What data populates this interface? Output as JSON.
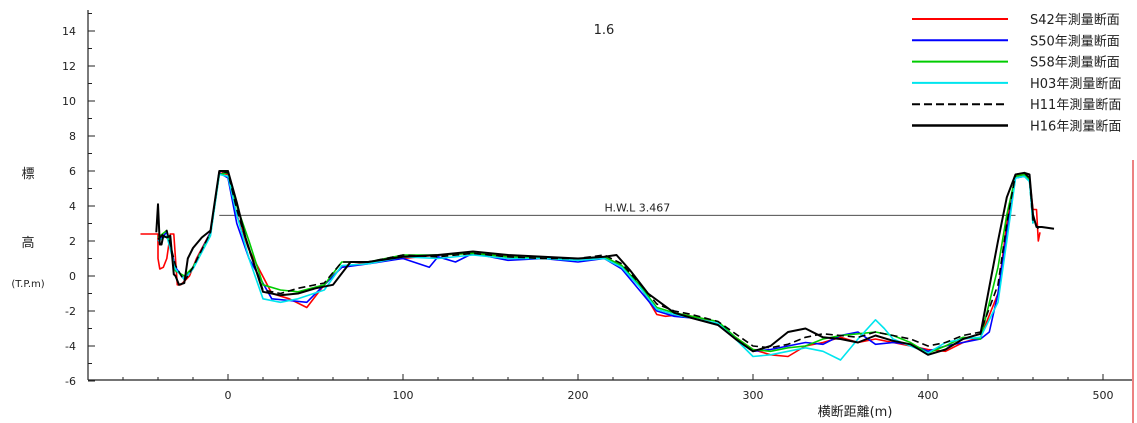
{
  "chart_data": {
    "type": "line",
    "title": "1.6",
    "xlabel": "横断距離(m)",
    "ylabel_top": "標",
    "ylabel_bottom": "高",
    "ylabel_unit": "(T.P.m)",
    "xlim": [
      -85,
      520
    ],
    "ylim": [
      -6,
      15
    ],
    "x_ticks": [
      0,
      100,
      200,
      300,
      400,
      500
    ],
    "y_ticks": [
      -6,
      -4,
      -2,
      0,
      2,
      4,
      6,
      8,
      10,
      12,
      14
    ],
    "legend_position": "top-right",
    "reference_line": {
      "label": "H.W.L 3.467",
      "y": 3.467,
      "x_start": -5,
      "x_end": 450
    },
    "series": [
      {
        "name": "S42年測量断面",
        "color": "#ff0000",
        "dash": "solid",
        "width": 1.6,
        "x": [
          -50,
          -40,
          -40,
          -39,
          -37,
          -35,
          -33,
          -31,
          -29,
          -27,
          -25,
          -22,
          -18,
          -10,
          -5,
          0,
          5,
          12,
          25,
          35,
          45,
          55,
          65,
          80,
          100,
          120,
          140,
          160,
          180,
          200,
          215,
          225,
          235,
          245,
          250,
          260,
          270,
          280,
          290,
          300,
          310,
          320,
          330,
          340,
          350,
          360,
          370,
          380,
          390,
          400,
          410,
          420,
          430,
          440,
          445,
          450,
          455,
          458,
          460,
          462,
          463,
          464
        ],
        "y": [
          2.4,
          2.4,
          1.0,
          0.4,
          0.5,
          1.0,
          2.4,
          2.4,
          -0.5,
          -0.5,
          -0.3,
          0.0,
          1.0,
          2.5,
          5.9,
          5.8,
          3.5,
          1.5,
          -1.0,
          -1.3,
          -1.8,
          -0.5,
          0.5,
          0.8,
          1.0,
          1.2,
          1.3,
          1.1,
          1.0,
          1.0,
          1.0,
          0.5,
          -0.5,
          -2.2,
          -2.3,
          -2.2,
          -2.4,
          -2.8,
          -3.5,
          -4.2,
          -4.5,
          -4.6,
          -4.0,
          -3.8,
          -3.5,
          -3.8,
          -3.6,
          -3.8,
          -4.0,
          -4.2,
          -4.3,
          -3.8,
          -3.5,
          -1.0,
          3.0,
          5.7,
          5.8,
          5.6,
          3.8,
          3.8,
          2.0,
          2.5
        ]
      },
      {
        "name": "S50年測量断面",
        "color": "#0000ff",
        "dash": "solid",
        "width": 1.6,
        "x": [
          -40,
          -35,
          -30,
          -25,
          -20,
          -10,
          -5,
          0,
          5,
          12,
          25,
          35,
          45,
          55,
          65,
          80,
          100,
          115,
          120,
          130,
          140,
          160,
          180,
          200,
          215,
          225,
          235,
          245,
          255,
          265,
          280,
          290,
          300,
          310,
          320,
          330,
          340,
          350,
          360,
          370,
          380,
          390,
          400,
          410,
          420,
          430,
          435,
          440,
          445,
          450,
          455,
          458,
          460
        ],
        "y": [
          2.0,
          2.5,
          0.5,
          -0.2,
          0.5,
          2.5,
          5.9,
          5.6,
          3.0,
          1.0,
          -1.3,
          -1.4,
          -1.5,
          -0.5,
          0.5,
          0.7,
          1.0,
          0.5,
          1.1,
          0.8,
          1.3,
          0.9,
          1.0,
          0.8,
          1.0,
          0.4,
          -0.8,
          -2.0,
          -2.3,
          -2.4,
          -2.8,
          -3.6,
          -4.3,
          -4.2,
          -4.0,
          -3.8,
          -3.9,
          -3.4,
          -3.2,
          -3.9,
          -3.8,
          -3.9,
          -4.3,
          -4.0,
          -3.8,
          -3.6,
          -3.2,
          -1.0,
          2.5,
          5.6,
          5.7,
          5.5,
          3.0
        ]
      },
      {
        "name": "S58年測量断面",
        "color": "#00cc00",
        "dash": "solid",
        "width": 1.6,
        "x": [
          -40,
          -35,
          -30,
          -25,
          -20,
          -10,
          -5,
          0,
          5,
          12,
          20,
          30,
          40,
          55,
          65,
          80,
          100,
          120,
          140,
          160,
          180,
          200,
          215,
          225,
          235,
          245,
          255,
          265,
          280,
          290,
          300,
          310,
          320,
          330,
          340,
          350,
          360,
          370,
          380,
          390,
          400,
          410,
          420,
          430,
          440,
          445,
          450,
          455,
          458,
          460
        ],
        "y": [
          2.2,
          2.6,
          0.3,
          0.0,
          0.5,
          2.4,
          5.8,
          5.9,
          4.0,
          2.0,
          -0.5,
          -0.8,
          -0.9,
          -0.5,
          0.8,
          0.8,
          1.2,
          1.2,
          1.3,
          1.1,
          1.0,
          1.0,
          1.1,
          0.6,
          -0.5,
          -1.8,
          -2.1,
          -2.3,
          -2.6,
          -3.5,
          -4.2,
          -4.3,
          -4.1,
          -4.0,
          -3.6,
          -3.4,
          -3.3,
          -3.2,
          -3.4,
          -3.8,
          -4.4,
          -4.0,
          -3.5,
          -3.6,
          0.5,
          3.5,
          5.7,
          5.8,
          5.5,
          3.0
        ]
      },
      {
        "name": "H03年測量断面",
        "color": "#00e5ee",
        "dash": "solid",
        "width": 1.6,
        "x": [
          -40,
          -35,
          -30,
          -25,
          -20,
          -10,
          -5,
          0,
          5,
          12,
          20,
          30,
          40,
          55,
          65,
          80,
          100,
          120,
          140,
          160,
          180,
          200,
          215,
          225,
          235,
          245,
          255,
          265,
          280,
          290,
          300,
          310,
          320,
          330,
          340,
          350,
          360,
          370,
          375,
          380,
          390,
          400,
          410,
          420,
          430,
          440,
          445,
          450,
          455,
          458,
          460
        ],
        "y": [
          2.0,
          2.3,
          0.4,
          -0.2,
          0.4,
          2.3,
          5.8,
          5.7,
          3.5,
          1.0,
          -1.3,
          -1.5,
          -1.3,
          -0.8,
          0.6,
          0.7,
          1.1,
          1.0,
          1.2,
          1.0,
          1.0,
          0.9,
          1.0,
          0.5,
          -0.6,
          -1.9,
          -2.2,
          -2.4,
          -2.7,
          -3.6,
          -4.6,
          -4.5,
          -4.3,
          -4.1,
          -4.3,
          -4.8,
          -3.6,
          -2.5,
          -3.0,
          -3.6,
          -4.0,
          -4.4,
          -3.8,
          -3.6,
          -3.5,
          -1.5,
          2.0,
          5.6,
          5.7,
          5.4,
          3.0
        ]
      },
      {
        "name": "H11年測量断面",
        "color": "#000000",
        "dash": "dashed",
        "width": 1.6,
        "x": [
          -40,
          -35,
          -30,
          -25,
          -20,
          -10,
          -5,
          0,
          5,
          12,
          20,
          30,
          40,
          55,
          65,
          80,
          100,
          120,
          140,
          160,
          180,
          200,
          215,
          225,
          235,
          245,
          255,
          265,
          280,
          290,
          300,
          310,
          320,
          330,
          340,
          350,
          360,
          370,
          380,
          390,
          400,
          410,
          420,
          430,
          440,
          445,
          450,
          455,
          458,
          460,
          463
        ],
        "y": [
          2.1,
          2.6,
          0.6,
          -0.3,
          0.5,
          2.5,
          6.0,
          5.9,
          3.8,
          1.5,
          -0.8,
          -1.0,
          -0.7,
          -0.4,
          0.8,
          0.8,
          1.2,
          1.1,
          1.3,
          1.1,
          1.0,
          1.0,
          1.2,
          0.7,
          -0.4,
          -1.6,
          -2.0,
          -2.2,
          -2.6,
          -3.3,
          -4.0,
          -4.1,
          -3.9,
          -3.5,
          -3.3,
          -3.4,
          -3.5,
          -3.2,
          -3.4,
          -3.6,
          -4.0,
          -3.8,
          -3.4,
          -3.2,
          -0.5,
          3.0,
          5.8,
          5.9,
          5.6,
          3.2,
          2.7
        ]
      },
      {
        "name": "H16年測量断面",
        "color": "#000000",
        "dash": "solid",
        "width": 2.0,
        "x": [
          -41,
          -40,
          -39,
          -38,
          -37,
          -35,
          -33,
          -31,
          -30,
          -28,
          -25,
          -23,
          -20,
          -15,
          -10,
          -5,
          0,
          5,
          10,
          20,
          30,
          40,
          50,
          60,
          70,
          80,
          100,
          120,
          140,
          160,
          180,
          200,
          215,
          222,
          230,
          240,
          255,
          265,
          280,
          290,
          300,
          310,
          320,
          330,
          340,
          350,
          360,
          370,
          380,
          390,
          400,
          410,
          420,
          430,
          440,
          445,
          450,
          455,
          458,
          460,
          462,
          465,
          472
        ],
        "y": [
          2.5,
          4.1,
          1.8,
          1.8,
          2.3,
          2.2,
          2.3,
          0.1,
          0.0,
          -0.5,
          -0.4,
          1.0,
          1.6,
          2.2,
          2.6,
          6.0,
          6.0,
          4.2,
          2.2,
          -0.9,
          -1.1,
          -1.0,
          -0.7,
          -0.5,
          0.8,
          0.8,
          1.1,
          1.2,
          1.4,
          1.2,
          1.1,
          1.0,
          1.1,
          1.2,
          0.3,
          -1.0,
          -2.1,
          -2.4,
          -2.8,
          -3.6,
          -4.3,
          -4.0,
          -3.2,
          -3.0,
          -3.5,
          -3.6,
          -3.8,
          -3.4,
          -3.7,
          -3.9,
          -4.5,
          -4.2,
          -3.6,
          -3.3,
          2.0,
          4.5,
          5.8,
          5.9,
          5.8,
          3.5,
          2.8,
          2.8,
          2.7
        ]
      }
    ]
  }
}
